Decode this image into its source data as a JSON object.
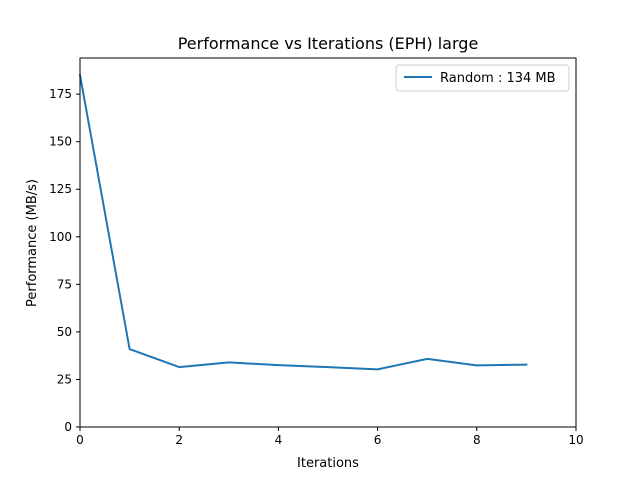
{
  "chart_data": {
    "type": "line",
    "title": "Performance vs Iterations (EPH) large",
    "xlabel": "Iterations",
    "ylabel": "Performance (MB/s)",
    "xlim": [
      0,
      10
    ],
    "ylim": [
      0,
      194
    ],
    "xticks": [
      0,
      2,
      4,
      6,
      8,
      10
    ],
    "yticks": [
      0,
      25,
      50,
      75,
      100,
      125,
      150,
      175
    ],
    "grid": false,
    "legend_position": "upper right",
    "series": [
      {
        "name": "Random : 134 MB",
        "color": "#1f77b4",
        "x": [
          0,
          1,
          2,
          3,
          4,
          5,
          6,
          7,
          8,
          9
        ],
        "y": [
          185,
          41,
          31.5,
          34,
          32.5,
          31.5,
          30.3,
          35.8,
          32.4,
          32.8
        ]
      }
    ]
  }
}
